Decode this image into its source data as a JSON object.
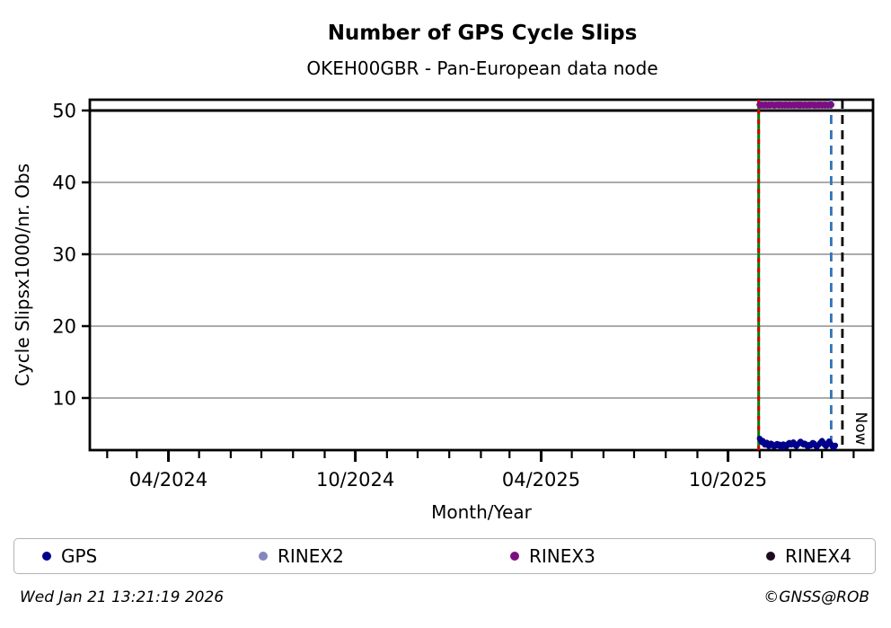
{
  "header": {
    "title": "Number of GPS Cycle Slips",
    "subtitle": "OKEH00GBR - Pan-European data node"
  },
  "axes": {
    "x_label": "Month/Year",
    "y_label": "Cycle Slipsx1000/nr. Obs",
    "x_domain": {
      "start": "2024-01-15",
      "end": "2026-02-20"
    },
    "y_domain": {
      "min": 2.75,
      "max": 51.5
    },
    "y_ticks": [
      10,
      20,
      30,
      40,
      50
    ],
    "x_major_ticks": [
      {
        "date": "2024-04-01",
        "label": "04/2024"
      },
      {
        "date": "2024-10-01",
        "label": "10/2024"
      },
      {
        "date": "2025-04-01",
        "label": "04/2025"
      },
      {
        "date": "2025-10-01",
        "label": "10/2025"
      }
    ],
    "x_minor_tick_interval": "monthly",
    "grid_color": "#ababab",
    "threshold_line": {
      "y": 50,
      "color": "#000000"
    }
  },
  "annotations": {
    "now_label": "Now",
    "vlines": [
      {
        "date": "2025-10-31",
        "style": "solid-with-red-dashes",
        "color": "#008000",
        "dash_color": "#d40000"
      },
      {
        "date": "2026-01-10",
        "style": "dashed",
        "color": "#2e75b6"
      },
      {
        "date": "2026-01-21",
        "style": "dashed",
        "color": "#000000",
        "label": "Now"
      }
    ]
  },
  "chart_data": {
    "type": "scatter",
    "title": "Number of GPS Cycle Slips",
    "subtitle": "OKEH00GBR - Pan-European data node",
    "xlabel": "Month/Year",
    "ylabel": "Cycle Slipsx1000/nr. Obs",
    "xlim": [
      "2024-01-15",
      "2026-02-20"
    ],
    "ylim": [
      2.75,
      51.5
    ],
    "grid": "horizontal-only",
    "legend_position": "below",
    "series": [
      {
        "name": "GPS",
        "color": "#00008b",
        "marker_radius": 3.2,
        "start_date": "2025-11-01",
        "interval_days": 1,
        "values": [
          4.35,
          4.1,
          3.85,
          4.05,
          3.7,
          3.5,
          3.62,
          3.8,
          3.45,
          3.3,
          3.52,
          3.68,
          3.6,
          3.42,
          3.25,
          3.35,
          3.5,
          3.62,
          3.4,
          3.55,
          3.3,
          3.15,
          3.42,
          3.58,
          3.5,
          3.3,
          3.22,
          3.4,
          3.65,
          3.78,
          3.6,
          3.5,
          3.68,
          3.85,
          3.62,
          3.42,
          3.3,
          3.5,
          3.62,
          3.78,
          3.95,
          3.8,
          3.6,
          3.5,
          3.68,
          3.6,
          3.42,
          3.22,
          3.32,
          3.5,
          3.4,
          3.6,
          3.78,
          3.7,
          3.5,
          3.32,
          3.2,
          3.42,
          3.52,
          3.7,
          3.88,
          4.05,
          3.82,
          3.6,
          3.42,
          3.3,
          3.5,
          3.78,
          3.98,
          3.72,
          3.52,
          3.32,
          3.12,
          3.22,
          3.4
        ]
      },
      {
        "name": "RINEX2",
        "color": "#8585c2",
        "marker_radius": 3.2,
        "start_date": null,
        "interval_days": 1,
        "values": []
      },
      {
        "name": "RINEX3",
        "color": "#7b0f82",
        "marker_radius": 3.6,
        "start_date": "2025-11-01",
        "interval_days": 1,
        "values": [
          50.8,
          50.7,
          50.8,
          50.75,
          50.7,
          50.8,
          50.8,
          50.7,
          50.75,
          50.8,
          50.7,
          50.8,
          50.75,
          50.8,
          50.7,
          50.7,
          50.8,
          50.75,
          50.8,
          50.7,
          50.8,
          50.8,
          50.7,
          50.75,
          50.8,
          50.7,
          50.8,
          50.75,
          50.7,
          50.8,
          50.8,
          50.7,
          50.75,
          50.8,
          50.7,
          50.8,
          50.75,
          50.8,
          50.7,
          50.8,
          50.7,
          50.8,
          50.75,
          50.7,
          50.8,
          50.8,
          50.7,
          50.75,
          50.8,
          50.7,
          50.8,
          50.75,
          50.8,
          50.7,
          50.8,
          50.7,
          50.75,
          50.8,
          50.7,
          50.8,
          50.8,
          50.7,
          50.75,
          50.8,
          50.7,
          50.8,
          50.75,
          50.7,
          50.8,
          50.75,
          50.8
        ]
      },
      {
        "name": "RINEX4",
        "color": "#1e0a20",
        "marker_radius": 3.2,
        "start_date": null,
        "interval_days": 1,
        "values": []
      }
    ]
  },
  "legend": {
    "items": [
      {
        "label": "GPS",
        "color": "#00008b"
      },
      {
        "label": "RINEX2",
        "color": "#8585c2"
      },
      {
        "label": "RINEX3",
        "color": "#7b0f82"
      },
      {
        "label": "RINEX4",
        "color": "#1e0a20"
      }
    ]
  },
  "footer": {
    "timestamp": "Wed Jan 21 13:21:19 2026",
    "credit": "©GNSS@ROB"
  }
}
